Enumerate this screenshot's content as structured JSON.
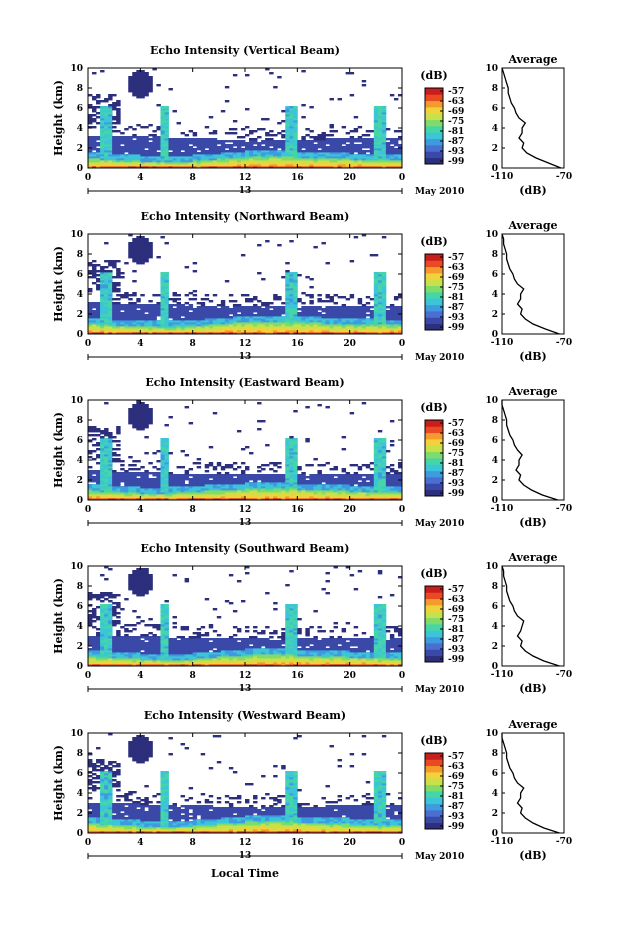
{
  "colors": {
    "scale": [
      "#2c2f7c",
      "#3a48a8",
      "#4a6fd0",
      "#3f9be0",
      "#3cc4d8",
      "#44d6a6",
      "#7fdc6a",
      "#c8e04a",
      "#f2d23a",
      "#f59a2c",
      "#ea4a22",
      "#c81e1e"
    ],
    "background_echo": "#2c2f7c",
    "profile_line": "#000000"
  },
  "figure": {
    "xlabel": "Local Time",
    "date_label": "May 2010",
    "colorbar_unit": "(dB)",
    "colorbar_ticks": [
      "-57",
      "-63",
      "-69",
      "-75",
      "-81",
      "-87",
      "-93",
      "-99"
    ],
    "day_label": "13",
    "profile_title": "Average",
    "profile_xlabel": "(dB)",
    "profile_xticks": [
      "-110",
      "-70"
    ]
  },
  "chart_data": [
    {
      "type": "heatmap",
      "title": "Echo Intensity (Vertical Beam)",
      "ylabel": "Height (km)",
      "xlim": [
        0,
        24
      ],
      "ylim": [
        0,
        10
      ],
      "xticks": [
        "0",
        "4",
        "8",
        "12",
        "16",
        "20",
        "0"
      ],
      "yticks": [
        "0",
        "2",
        "4",
        "6",
        "8",
        "10"
      ],
      "colorbar_range_db": [
        -99,
        -57
      ],
      "layer_top_km": [
        3.3,
        3.2,
        3.2,
        3.1,
        3.0,
        2.9,
        2.9,
        2.8,
        2.8,
        2.9,
        3.0,
        3.0,
        3.0
      ],
      "strong_band_top_km": [
        1.0,
        0.8,
        0.7,
        0.6,
        0.7,
        0.9,
        1.1,
        1.2,
        1.1,
        1.0,
        0.9,
        0.8,
        0.8
      ],
      "plume_times_h": [
        1.2,
        1.6,
        5.8,
        15.5,
        22.3
      ],
      "cloud_patch_time_h": [
        3.0,
        5.0
      ],
      "cloud_patch_height_km": [
        7.0,
        9.8
      ]
    },
    {
      "type": "line",
      "title": "Average",
      "xlabel": "(dB)",
      "ylabel": "",
      "xlim": [
        -110,
        -70
      ],
      "ylim": [
        0,
        10
      ],
      "height_km": [
        0,
        0.5,
        1,
        1.5,
        2,
        2.5,
        3,
        3.5,
        4,
        4.5,
        5,
        5.5,
        6,
        6.5,
        7,
        7.5,
        8,
        8.5,
        9,
        9.5,
        10
      ],
      "echo_db": [
        -72,
        -80,
        -88,
        -94,
        -97,
        -96,
        -99,
        -97,
        -97,
        -95,
        -99,
        -101,
        -102,
        -104,
        -105,
        -106,
        -106,
        -107,
        -108,
        -109,
        -110
      ]
    },
    {
      "type": "heatmap",
      "title": "Echo Intensity (Northward Beam)",
      "ylabel": "Height (km)",
      "xlim": [
        0,
        24
      ],
      "ylim": [
        0,
        10
      ],
      "xticks": [
        "0",
        "4",
        "8",
        "12",
        "16",
        "20",
        "0"
      ],
      "yticks": [
        "0",
        "2",
        "4",
        "6",
        "8",
        "10"
      ],
      "colorbar_range_db": [
        -99,
        -57
      ],
      "layer_top_km": [
        3.2,
        3.1,
        3.1,
        3.0,
        2.9,
        2.8,
        2.8,
        2.8,
        2.7,
        2.8,
        2.9,
        2.9,
        2.9
      ],
      "strong_band_top_km": [
        1.1,
        0.9,
        0.8,
        0.7,
        0.8,
        1.0,
        1.2,
        1.3,
        1.2,
        1.1,
        1.0,
        0.9,
        0.9
      ],
      "plume_times_h": [
        1.2,
        1.6,
        5.8,
        15.5,
        22.3
      ],
      "cloud_patch_time_h": [
        3.0,
        5.0
      ],
      "cloud_patch_height_km": [
        7.0,
        9.8
      ]
    },
    {
      "type": "line",
      "title": "Average",
      "xlabel": "(dB)",
      "ylabel": "",
      "xlim": [
        -110,
        -70
      ],
      "ylim": [
        0,
        10
      ],
      "height_km": [
        0,
        0.5,
        1,
        1.5,
        2,
        2.5,
        3,
        3.5,
        4,
        4.5,
        5,
        5.5,
        6,
        6.5,
        7,
        7.5,
        8,
        8.5,
        9,
        9.5,
        10
      ],
      "echo_db": [
        -73,
        -82,
        -90,
        -95,
        -98,
        -97,
        -100,
        -98,
        -98,
        -96,
        -100,
        -102,
        -103,
        -105,
        -106,
        -107,
        -107,
        -108,
        -109,
        -109,
        -110
      ]
    },
    {
      "type": "heatmap",
      "title": "Echo Intensity (Eastward Beam)",
      "ylabel": "Height (km)",
      "xlim": [
        0,
        24
      ],
      "ylim": [
        0,
        10
      ],
      "xticks": [
        "0",
        "4",
        "8",
        "12",
        "16",
        "20",
        "0"
      ],
      "yticks": [
        "0",
        "2",
        "4",
        "6",
        "8",
        "10"
      ],
      "colorbar_range_db": [
        -99,
        -57
      ],
      "layer_top_km": [
        3.0,
        2.9,
        2.8,
        2.7,
        2.6,
        2.6,
        2.6,
        2.6,
        2.5,
        2.6,
        2.7,
        2.7,
        2.7
      ],
      "strong_band_top_km": [
        1.0,
        0.8,
        0.7,
        0.7,
        0.8,
        1.0,
        1.1,
        1.2,
        1.1,
        1.0,
        0.9,
        0.8,
        0.8
      ],
      "plume_times_h": [
        1.2,
        1.6,
        5.8,
        15.5,
        22.3
      ],
      "cloud_patch_time_h": [
        3.0,
        5.0
      ],
      "cloud_patch_height_km": [
        7.0,
        9.8
      ]
    },
    {
      "type": "line",
      "title": "Average",
      "xlabel": "(dB)",
      "ylabel": "",
      "xlim": [
        -110,
        -70
      ],
      "ylim": [
        0,
        10
      ],
      "height_km": [
        0,
        0.5,
        1,
        1.5,
        2,
        2.5,
        3,
        3.5,
        4,
        4.5,
        5,
        5.5,
        6,
        6.5,
        7,
        7.5,
        8,
        8.5,
        9,
        9.5,
        10
      ],
      "echo_db": [
        -74,
        -84,
        -91,
        -96,
        -99,
        -98,
        -101,
        -99,
        -99,
        -97,
        -100,
        -102,
        -103,
        -105,
        -106,
        -107,
        -107,
        -108,
        -109,
        -110,
        -110
      ]
    },
    {
      "type": "heatmap",
      "title": "Echo Intensity (Southward Beam)",
      "ylabel": "Height (km)",
      "xlim": [
        0,
        24
      ],
      "ylim": [
        0,
        10
      ],
      "xticks": [
        "0",
        "4",
        "8",
        "12",
        "16",
        "20",
        "0"
      ],
      "yticks": [
        "0",
        "2",
        "4",
        "6",
        "8",
        "10"
      ],
      "colorbar_range_db": [
        -99,
        -57
      ],
      "layer_top_km": [
        3.1,
        3.0,
        3.0,
        2.9,
        2.8,
        2.8,
        2.8,
        2.7,
        2.7,
        2.8,
        2.9,
        2.9,
        2.9
      ],
      "strong_band_top_km": [
        1.0,
        0.8,
        0.7,
        0.6,
        0.7,
        0.9,
        1.1,
        1.2,
        1.1,
        1.0,
        0.9,
        0.8,
        0.8
      ],
      "plume_times_h": [
        1.2,
        1.6,
        5.8,
        15.5,
        22.3
      ],
      "cloud_patch_time_h": [
        3.0,
        5.0
      ],
      "cloud_patch_height_km": [
        7.0,
        9.8
      ]
    },
    {
      "type": "line",
      "title": "Average",
      "xlabel": "(dB)",
      "ylabel": "",
      "xlim": [
        -110,
        -70
      ],
      "ylim": [
        0,
        10
      ],
      "height_km": [
        0,
        0.5,
        1,
        1.5,
        2,
        2.5,
        3,
        3.5,
        4,
        4.5,
        5,
        5.5,
        6,
        6.5,
        7,
        7.5,
        8,
        8.5,
        9,
        9.5,
        10
      ],
      "echo_db": [
        -73,
        -83,
        -90,
        -95,
        -98,
        -97,
        -100,
        -98,
        -97,
        -96,
        -100,
        -102,
        -103,
        -105,
        -106,
        -107,
        -107,
        -108,
        -109,
        -109,
        -110
      ]
    },
    {
      "type": "heatmap",
      "title": "Echo Intensity (Westward Beam)",
      "ylabel": "Height (km)",
      "xlim": [
        0,
        24
      ],
      "ylim": [
        0,
        10
      ],
      "xticks": [
        "0",
        "4",
        "8",
        "12",
        "16",
        "20",
        "0"
      ],
      "yticks": [
        "0",
        "2",
        "4",
        "6",
        "8",
        "10"
      ],
      "colorbar_range_db": [
        -99,
        -57
      ],
      "layer_top_km": [
        3.1,
        3.0,
        2.9,
        2.8,
        2.8,
        2.7,
        2.7,
        2.7,
        2.6,
        2.7,
        2.8,
        2.8,
        2.8
      ],
      "strong_band_top_km": [
        1.0,
        0.8,
        0.7,
        0.6,
        0.7,
        0.9,
        1.1,
        1.2,
        1.1,
        1.0,
        0.9,
        0.8,
        0.8
      ],
      "plume_times_h": [
        1.2,
        1.6,
        5.8,
        15.5,
        22.3
      ],
      "cloud_patch_time_h": [
        3.0,
        5.0
      ],
      "cloud_patch_height_km": [
        7.0,
        9.8
      ]
    },
    {
      "type": "line",
      "title": "Average",
      "xlabel": "(dB)",
      "ylabel": "",
      "xlim": [
        -110,
        -70
      ],
      "ylim": [
        0,
        10
      ],
      "height_km": [
        0,
        0.5,
        1,
        1.5,
        2,
        2.5,
        3,
        3.5,
        4,
        4.5,
        5,
        5.5,
        6,
        6.5,
        7,
        7.5,
        8,
        8.5,
        9,
        9.5,
        10
      ],
      "echo_db": [
        -73,
        -83,
        -90,
        -95,
        -98,
        -97,
        -100,
        -98,
        -98,
        -96,
        -100,
        -102,
        -103,
        -105,
        -106,
        -107,
        -107,
        -108,
        -109,
        -110,
        -110
      ]
    }
  ]
}
